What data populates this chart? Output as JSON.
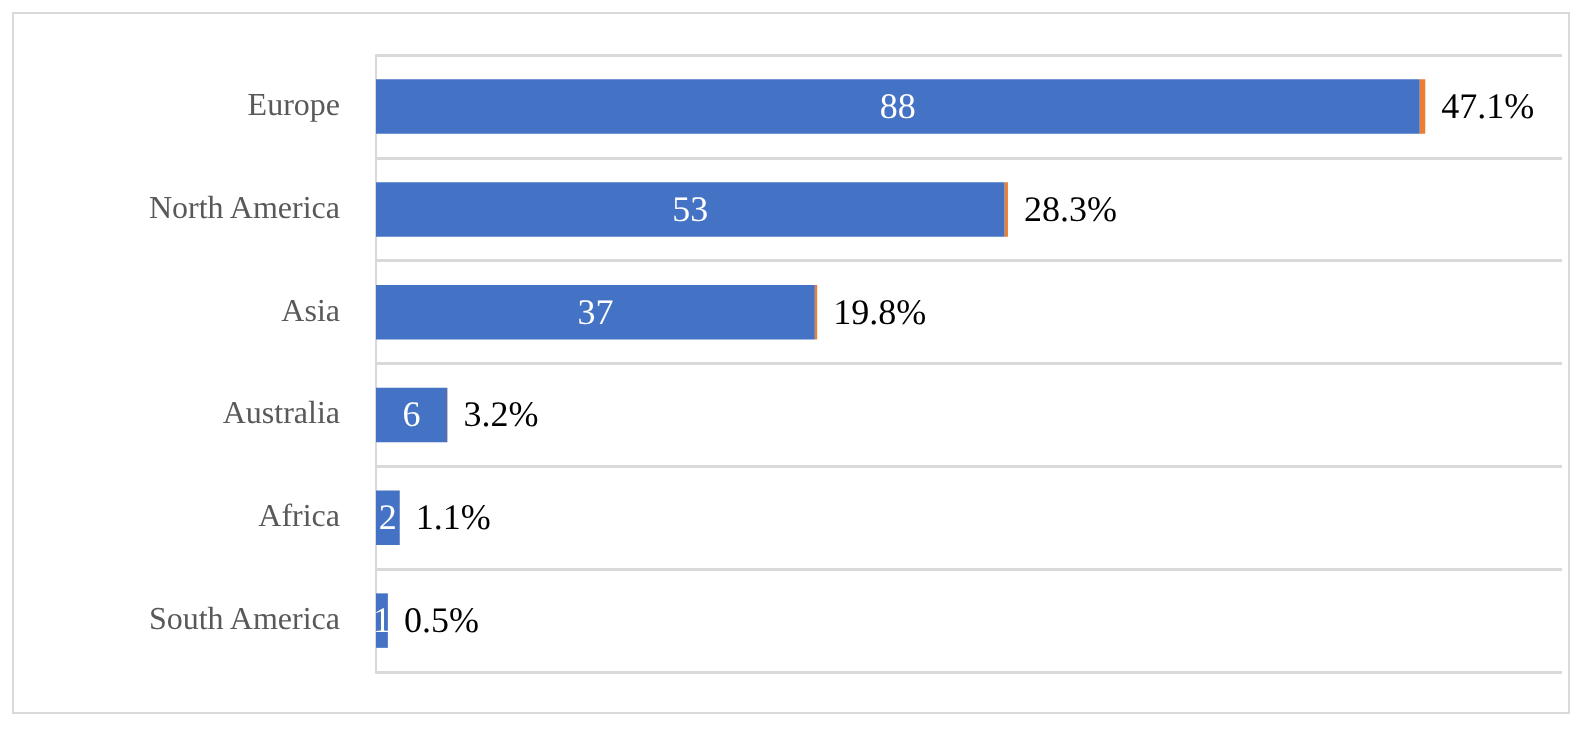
{
  "chart_data": {
    "type": "bar",
    "orientation": "horizontal",
    "stacked": true,
    "categories": [
      "Europe",
      "North America",
      "Asia",
      "Australia",
      "Africa",
      "South America"
    ],
    "series": [
      {
        "color": "#4472c4",
        "values": [
          88,
          53,
          37,
          6,
          2,
          1
        ],
        "data_labels": true
      },
      {
        "color": "#ed7d31",
        "values": [
          0.471,
          0.283,
          0.198,
          0.032,
          0.011,
          0.005
        ],
        "value_labels": [
          "47.1%",
          "28.3%",
          "19.8%",
          "3.2%",
          "1.1%",
          "0.5%"
        ]
      }
    ],
    "xlim": [
      0,
      100
    ],
    "tick_labels": "y",
    "grid": "y",
    "legend": false
  }
}
